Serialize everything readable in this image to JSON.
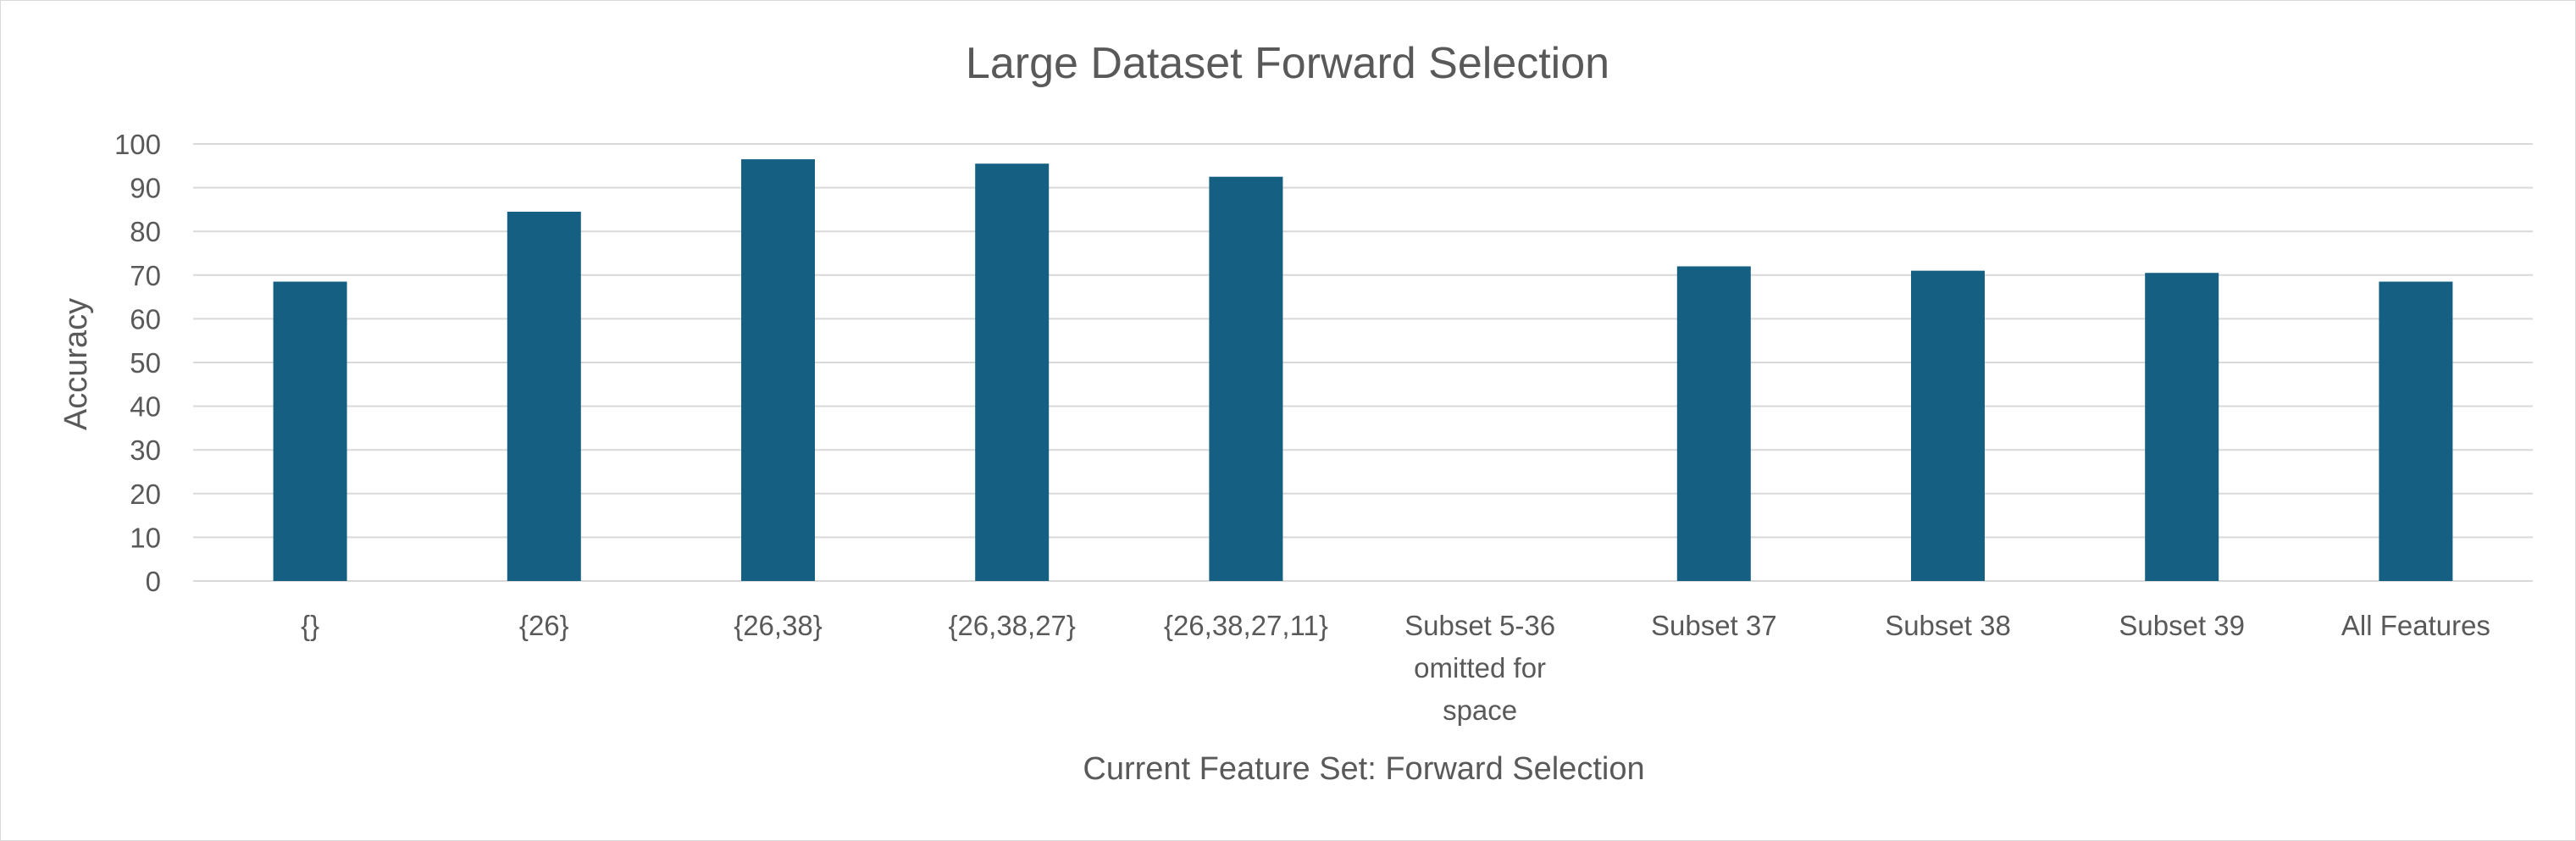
{
  "chart_data": {
    "type": "bar",
    "title": "Large Dataset Forward Selection",
    "xlabel": "Current Feature Set: Forward Selection",
    "ylabel": "Accuracy",
    "ylim": [
      0,
      100
    ],
    "yticks": [
      0,
      10,
      20,
      30,
      40,
      50,
      60,
      70,
      80,
      90,
      100
    ],
    "grid": true,
    "legend": "none",
    "categories": [
      [
        "{}"
      ],
      [
        "{26}"
      ],
      [
        "{26,38}"
      ],
      [
        "{26,38,27}"
      ],
      [
        "{26,38,27,11}"
      ],
      [
        "Subset 5-36",
        "omitted for",
        "space"
      ],
      [
        "Subset 37"
      ],
      [
        "Subset 38"
      ],
      [
        "Subset 39"
      ],
      [
        "All Features"
      ]
    ],
    "values": [
      68.5,
      84.5,
      96.5,
      95.5,
      92.5,
      null,
      72,
      71,
      70.5,
      68.5
    ],
    "bar_color": "#156082",
    "grid_color": "#d9d9d9"
  }
}
